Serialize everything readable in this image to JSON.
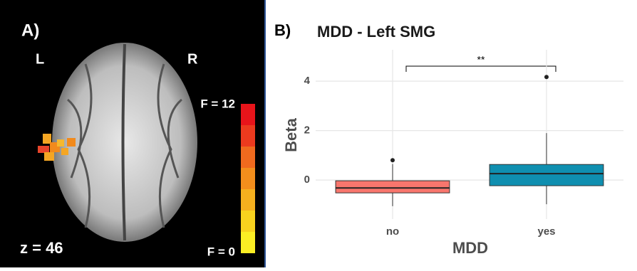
{
  "panel_a": {
    "label": "A)",
    "left": "L",
    "right": "R",
    "slice": "z = 46",
    "colorbar_max": "F = 12",
    "colorbar_min": "F = 0"
  },
  "chart_data": {
    "type": "box",
    "panel_label": "B)",
    "title": "MDD - Left SMG",
    "x_label": "MDD",
    "y_label": "Beta",
    "categories": [
      "no",
      "yes"
    ],
    "boxes": [
      {
        "whislo": -1.06,
        "q1": -0.52,
        "med": -0.32,
        "q3": -0.03,
        "whishi": 0.65,
        "outliers": [
          0.8
        ],
        "color": "#f8766d"
      },
      {
        "whislo": -0.98,
        "q1": -0.23,
        "med": 0.26,
        "q3": 0.63,
        "whishi": 1.9,
        "outliers": [
          4.17
        ],
        "color": "#0f8fb0"
      }
    ],
    "annotation": "**",
    "ylim": [
      -1.58,
      5.27
    ],
    "yticks": [
      0,
      2,
      4
    ],
    "grid": true
  }
}
